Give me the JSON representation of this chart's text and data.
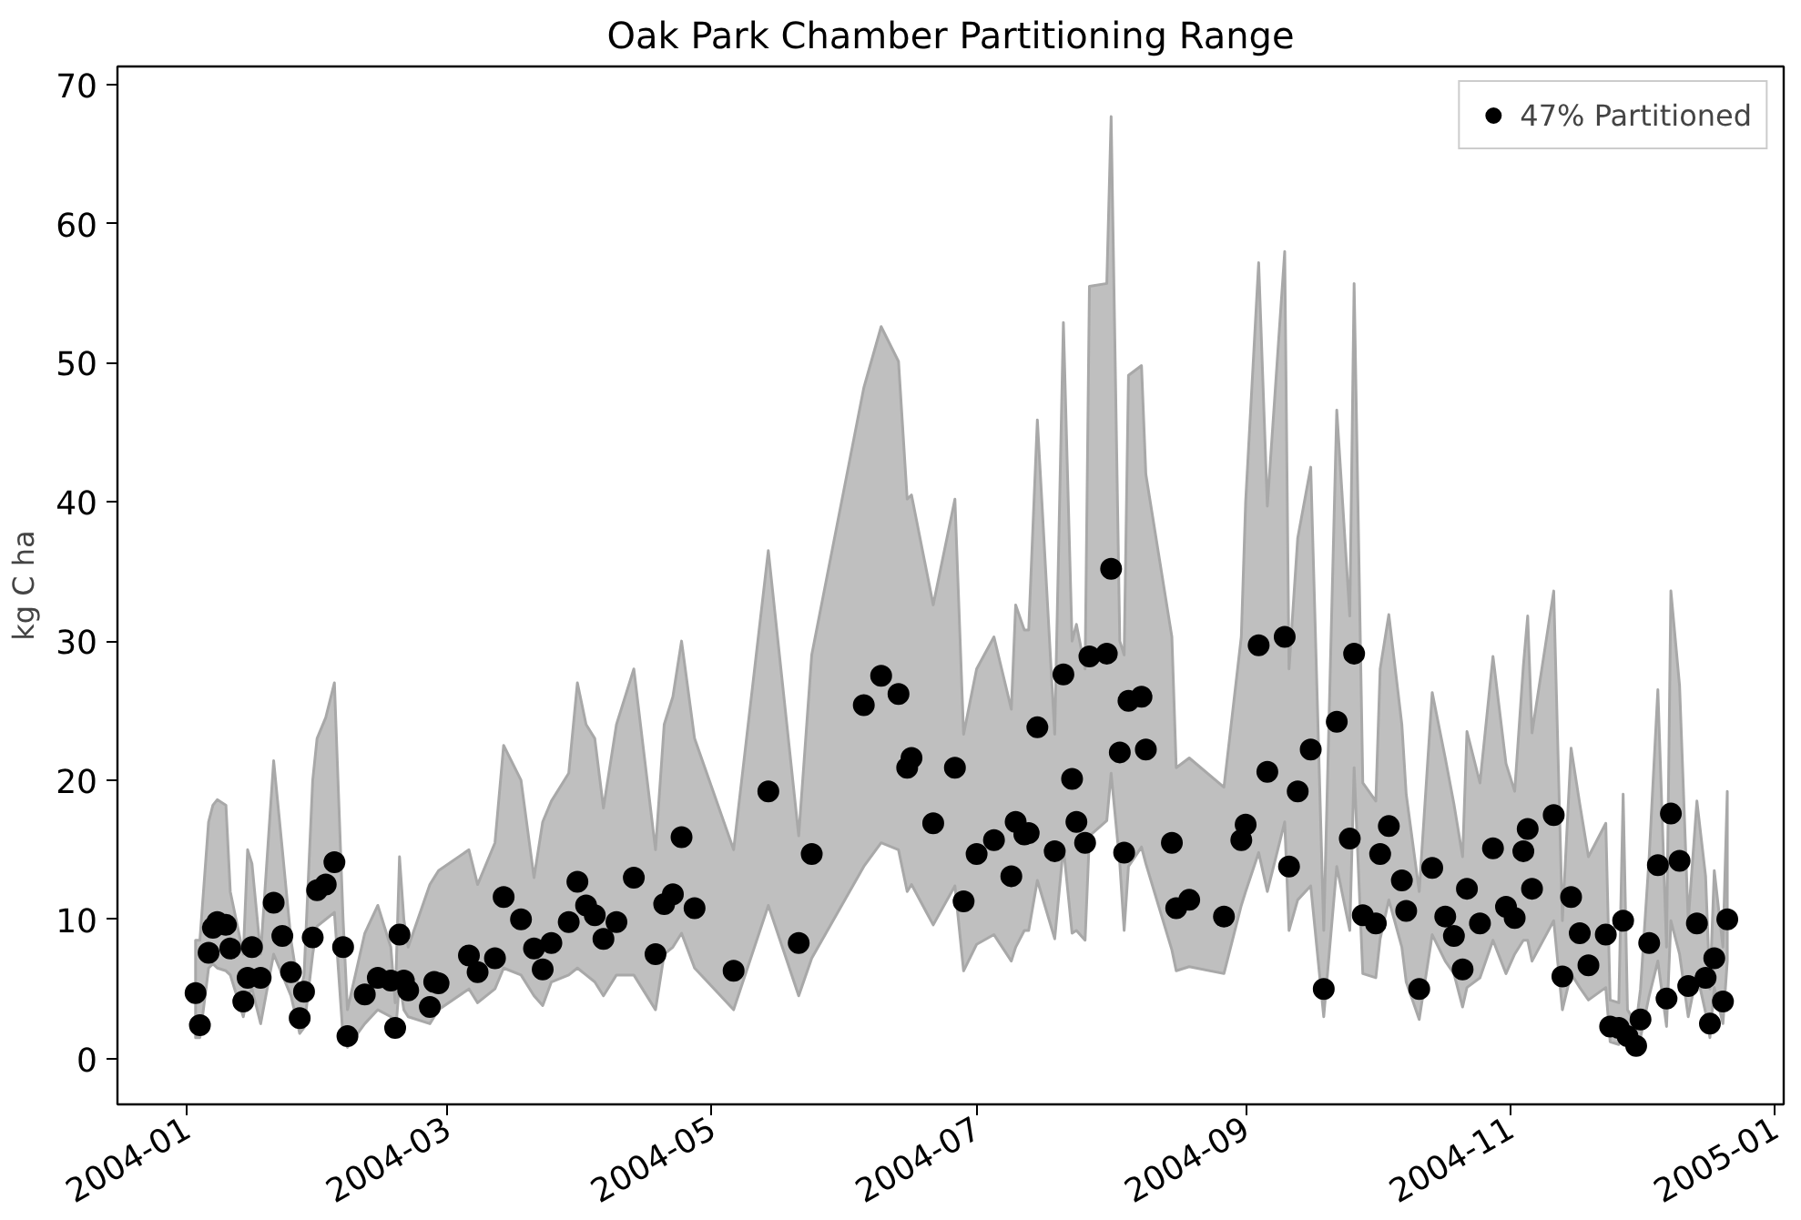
{
  "chart_data": {
    "type": "scatter",
    "title": "Oak Park Chamber Partitioning Range",
    "ylabel": "kg C ha",
    "xlim": [
      "2003-12-16",
      "2005-01-03"
    ],
    "xticks": [
      "2004-01",
      "2004-03",
      "2004-05",
      "2004-07",
      "2004-09",
      "2004-11",
      "2005-01"
    ],
    "ylim": [
      -3.3,
      71.3
    ],
    "yticks": [
      0,
      10,
      20,
      30,
      40,
      50,
      60,
      70
    ],
    "grid": false,
    "legend": "top right",
    "marker": "circle",
    "series": [
      {
        "name": "47% Partitioned",
        "color": "#000000",
        "x": [
          "2004-01-03",
          "2004-01-04",
          "2004-01-06",
          "2004-01-07",
          "2004-01-08",
          "2004-01-10",
          "2004-01-11",
          "2004-01-14",
          "2004-01-15",
          "2004-01-16",
          "2004-01-18",
          "2004-01-21",
          "2004-01-23",
          "2004-01-25",
          "2004-01-27",
          "2004-01-28",
          "2004-01-30",
          "2004-01-31",
          "2004-02-02",
          "2004-02-04",
          "2004-02-06",
          "2004-02-07",
          "2004-02-11",
          "2004-02-14",
          "2004-02-17",
          "2004-02-18",
          "2004-02-19",
          "2004-02-20",
          "2004-02-21",
          "2004-02-26",
          "2004-02-27",
          "2004-02-28",
          "2004-03-06",
          "2004-03-08",
          "2004-03-12",
          "2004-03-14",
          "2004-03-18",
          "2004-03-21",
          "2004-03-23",
          "2004-03-25",
          "2004-03-29",
          "2004-03-31",
          "2004-04-02",
          "2004-04-04",
          "2004-04-06",
          "2004-04-09",
          "2004-04-13",
          "2004-04-18",
          "2004-04-20",
          "2004-04-22",
          "2004-04-24",
          "2004-04-27",
          "2004-05-06",
          "2004-05-14",
          "2004-05-21",
          "2004-05-24",
          "2004-06-05",
          "2004-06-09",
          "2004-06-13",
          "2004-06-15",
          "2004-06-16",
          "2004-06-21",
          "2004-06-26",
          "2004-06-28",
          "2004-07-01",
          "2004-07-05",
          "2004-07-09",
          "2004-07-10",
          "2004-07-12",
          "2004-07-13",
          "2004-07-15",
          "2004-07-19",
          "2004-07-21",
          "2004-07-23",
          "2004-07-24",
          "2004-07-26",
          "2004-07-27",
          "2004-07-31",
          "2004-08-01",
          "2004-08-03",
          "2004-08-04",
          "2004-08-05",
          "2004-08-08",
          "2004-08-09",
          "2004-08-15",
          "2004-08-16",
          "2004-08-19",
          "2004-08-27",
          "2004-08-31",
          "2004-09-01",
          "2004-09-04",
          "2004-09-06",
          "2004-09-10",
          "2004-09-11",
          "2004-09-13",
          "2004-09-16",
          "2004-09-19",
          "2004-09-22",
          "2004-09-25",
          "2004-09-26",
          "2004-09-28",
          "2004-10-01",
          "2004-10-02",
          "2004-10-04",
          "2004-10-07",
          "2004-10-08",
          "2004-10-11",
          "2004-10-14",
          "2004-10-17",
          "2004-10-19",
          "2004-10-21",
          "2004-10-22",
          "2004-10-25",
          "2004-10-28",
          "2004-10-31",
          "2004-11-02",
          "2004-11-04",
          "2004-11-05",
          "2004-11-06",
          "2004-11-11",
          "2004-11-13",
          "2004-11-15",
          "2004-11-17",
          "2004-11-19",
          "2004-11-23",
          "2004-11-24",
          "2004-11-26",
          "2004-11-27",
          "2004-11-28",
          "2004-11-30",
          "2004-12-01",
          "2004-12-03",
          "2004-12-05",
          "2004-12-07",
          "2004-12-08",
          "2004-12-10",
          "2004-12-12",
          "2004-12-14",
          "2004-12-16",
          "2004-12-17",
          "2004-12-18",
          "2004-12-20",
          "2004-12-21"
        ],
        "values": [
          4.7,
          2.4,
          7.6,
          9.4,
          9.8,
          9.6,
          7.9,
          4.1,
          5.8,
          8.0,
          5.8,
          11.2,
          8.8,
          6.2,
          2.9,
          4.8,
          8.7,
          12.1,
          12.5,
          14.1,
          8.0,
          1.6,
          4.6,
          5.8,
          5.6,
          2.2,
          8.9,
          5.6,
          4.9,
          3.7,
          5.5,
          5.4,
          7.4,
          6.2,
          7.2,
          11.6,
          10.0,
          7.9,
          6.4,
          8.3,
          9.8,
          12.7,
          11.0,
          10.3,
          8.6,
          9.8,
          13.0,
          7.5,
          11.1,
          11.8,
          15.9,
          10.8,
          6.3,
          19.2,
          8.3,
          14.7,
          25.4,
          27.5,
          26.2,
          20.9,
          21.6,
          16.9,
          20.9,
          11.3,
          14.7,
          15.7,
          13.1,
          17.0,
          16.1,
          16.2,
          23.8,
          14.9,
          27.6,
          20.1,
          17.0,
          15.5,
          28.9,
          29.1,
          35.2,
          22.0,
          14.8,
          25.7,
          26.0,
          22.2,
          15.5,
          10.8,
          11.4,
          10.2,
          15.7,
          16.8,
          29.7,
          20.6,
          30.3,
          13.8,
          19.2,
          22.2,
          5.0,
          24.2,
          15.8,
          29.1,
          10.3,
          9.7,
          14.7,
          16.7,
          12.8,
          10.6,
          5.0,
          13.7,
          10.2,
          8.8,
          6.4,
          12.2,
          9.7,
          15.1,
          10.9,
          10.1,
          14.9,
          16.5,
          12.2,
          17.5,
          5.9,
          11.6,
          9.0,
          6.7,
          8.9,
          2.3,
          2.2,
          9.9,
          1.6,
          0.9,
          2.8,
          8.3,
          13.9,
          4.3,
          17.6,
          14.2,
          5.2,
          9.7,
          5.8,
          2.5,
          7.2,
          4.1,
          10.0
        ],
        "lower": [
          1.5,
          1.5,
          6.5,
          6.8,
          6.5,
          6.3,
          6.0,
          3.0,
          4.5,
          5.0,
          2.5,
          7.5,
          6.0,
          4.5,
          1.8,
          2.2,
          7.5,
          9.5,
          10.0,
          10.5,
          1.5,
          0.8,
          2.5,
          3.5,
          3.0,
          1.5,
          5.5,
          3.5,
          3.0,
          2.5,
          3.0,
          3.5,
          5.0,
          4.0,
          5.0,
          6.5,
          6.0,
          4.5,
          3.8,
          5.5,
          6.0,
          6.5,
          6.0,
          5.5,
          4.5,
          6.0,
          6.0,
          3.5,
          7.5,
          8.0,
          9.0,
          6.5,
          3.5,
          11.0,
          4.5,
          7.2,
          13.8,
          15.5,
          15.0,
          12.0,
          12.5,
          9.6,
          12.4,
          6.3,
          8.2,
          8.9,
          7.0,
          8.0,
          9.2,
          9.2,
          12.8,
          8.6,
          15.2,
          9.0,
          9.2,
          8.5,
          16.0,
          17.1,
          20.5,
          14.0,
          9.2,
          13.8,
          15.2,
          14.0,
          7.8,
          6.3,
          6.6,
          6.1,
          11.0,
          12.0,
          14.8,
          12.0,
          17.0,
          9.2,
          11.4,
          12.4,
          3.0,
          13.8,
          9.2,
          20.9,
          6.1,
          5.8,
          8.6,
          11.4,
          8.0,
          5.5,
          2.8,
          8.9,
          7.0,
          6.1,
          3.7,
          5.1,
          5.8,
          8.5,
          6.1,
          7.5,
          8.5,
          8.5,
          7.0,
          9.9,
          3.5,
          6.1,
          5.1,
          4.2,
          5.1,
          1.2,
          1.0,
          2.8,
          0.8,
          0.3,
          1.5,
          4.5,
          7.0,
          2.3,
          9.9,
          7.5,
          3.0,
          6.1,
          3.3,
          1.5,
          5.1,
          2.5,
          7.0
        ],
        "upper": [
          8.5,
          8.5,
          17.0,
          18.2,
          18.6,
          18.2,
          12.0,
          7.5,
          15.0,
          14.0,
          7.5,
          21.4,
          15.0,
          8.5,
          4.5,
          6.0,
          20.0,
          23.0,
          24.5,
          27.0,
          10.0,
          3.5,
          9.0,
          11.0,
          8.0,
          4.0,
          14.5,
          10.0,
          8.0,
          12.5,
          13.0,
          13.5,
          15.0,
          12.5,
          15.5,
          22.5,
          20.0,
          13.0,
          17.0,
          18.5,
          20.5,
          27.0,
          24.0,
          23.0,
          18.0,
          24.0,
          28.0,
          15.0,
          24.0,
          26.0,
          30.0,
          23.0,
          15.0,
          36.5,
          16.0,
          29.0,
          48.2,
          52.6,
          50.1,
          40.2,
          40.5,
          32.6,
          40.2,
          23.3,
          28.0,
          30.3,
          25.1,
          32.6,
          30.8,
          30.8,
          45.9,
          23.3,
          52.9,
          30.0,
          31.2,
          28.0,
          55.5,
          55.7,
          67.7,
          30.0,
          29.0,
          49.1,
          49.8,
          42.0,
          30.3,
          20.9,
          21.6,
          19.5,
          30.3,
          40.0,
          57.2,
          39.7,
          58.0,
          28.0,
          37.4,
          42.5,
          9.2,
          46.6,
          31.8,
          55.7,
          19.8,
          18.5,
          28.0,
          31.9,
          24.0,
          19.0,
          12.0,
          26.3,
          21.6,
          18.3,
          14.5,
          23.5,
          19.8,
          28.9,
          21.2,
          19.2,
          28.2,
          31.8,
          23.4,
          33.6,
          9.9,
          22.3,
          18.3,
          14.5,
          16.9,
          4.2,
          4.0,
          19.0,
          3.5,
          2.5,
          5.0,
          14.5,
          26.5,
          8.0,
          33.6,
          26.8,
          9.9,
          18.5,
          13.1,
          5.0,
          13.5,
          8.0,
          19.2
        ]
      }
    ]
  }
}
